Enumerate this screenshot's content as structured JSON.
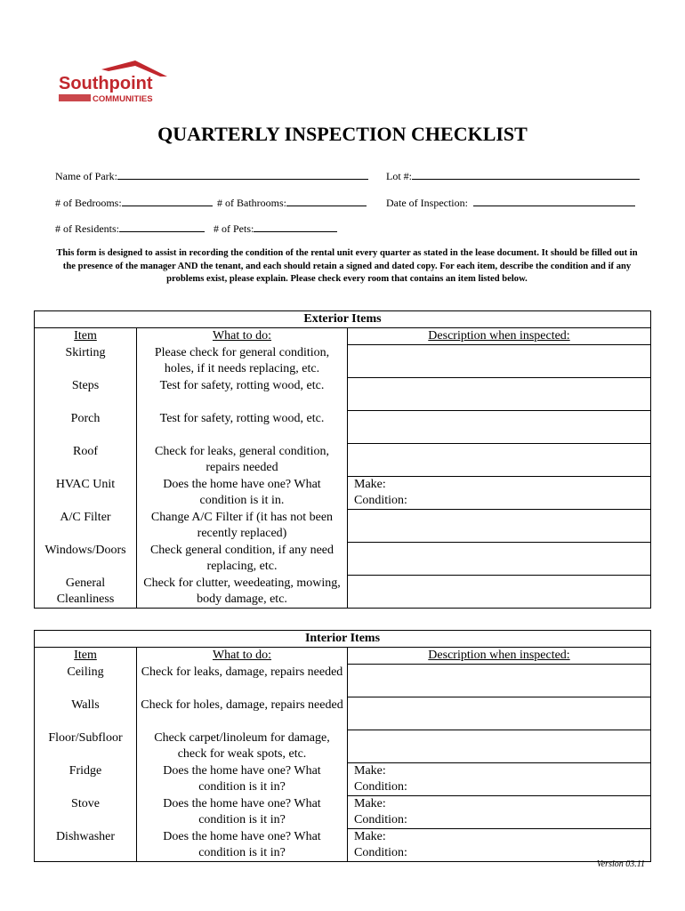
{
  "logo": {
    "name": "Southpoint",
    "sub": "COMMUNITIES",
    "color": "#c1272d"
  },
  "title": "QUARTERLY INSPECTION CHECKLIST",
  "fields": {
    "park": "Name of Park:",
    "lot": "Lot #:",
    "bedrooms": "# of Bedrooms:",
    "bathrooms": "# of Bathrooms:",
    "date": "Date of Inspection:",
    "residents": "# of Residents:",
    "pets": "# of Pets:"
  },
  "intro": "This form is designed to assist in recording the condition of the rental unit every quarter as stated in the lease document.  It should be filled out in the presence of the manager AND the tenant, and each should retain a signed and dated copy.  For each item, describe the condition and if any problems exist, please explain.  Please check every room that contains an item listed below.",
  "exterior": {
    "title": "Exterior Items",
    "headers": [
      "Item",
      "What to do:",
      "Description when inspected:"
    ],
    "rows": [
      {
        "item": "Skirting",
        "todo": "Please check for general condition, holes, if it needs replacing, etc.",
        "desc": ""
      },
      {
        "item": "Steps",
        "todo": "Test for safety, rotting wood, etc.",
        "desc": ""
      },
      {
        "item": "Porch",
        "todo": "Test for safety, rotting wood, etc.",
        "desc": ""
      },
      {
        "item": "Roof",
        "todo": "Check for leaks, general condition, repairs needed",
        "desc": ""
      },
      {
        "item": "HVAC Unit",
        "todo": "Does the home have one? What condition is it in.",
        "desc": "Make:\nCondition:"
      },
      {
        "item": "A/C Filter",
        "todo": "Change A/C Filter if (it has not been recently replaced)",
        "desc": ""
      },
      {
        "item": "Windows/Doors",
        "todo": "Check general condition, if any need replacing, etc.",
        "desc": ""
      },
      {
        "item": "General Cleanliness",
        "todo": "Check for clutter, weedeating, mowing, body damage, etc.",
        "desc": ""
      }
    ]
  },
  "interior": {
    "title": "Interior Items",
    "headers": [
      "Item",
      "What to do:",
      "Description when inspected:"
    ],
    "rows": [
      {
        "item": "Ceiling",
        "todo": "Check for leaks, damage, repairs needed",
        "desc": ""
      },
      {
        "item": "Walls",
        "todo": "Check for holes, damage, repairs needed",
        "desc": ""
      },
      {
        "item": "Floor/Subfloor",
        "todo": "Check carpet/linoleum for damage, check for weak spots, etc.",
        "desc": ""
      },
      {
        "item": "Fridge",
        "todo": "Does the home have one? What condition is it in?",
        "desc": "Make:\nCondition:"
      },
      {
        "item": "Stove",
        "todo": "Does the home have one? What condition is it in?",
        "desc": "Make:\nCondition:"
      },
      {
        "item": "Dishwasher",
        "todo": "Does the home have one? What condition is it in?",
        "desc": "Make:\nCondition:"
      }
    ]
  },
  "version": "Version 03.11"
}
